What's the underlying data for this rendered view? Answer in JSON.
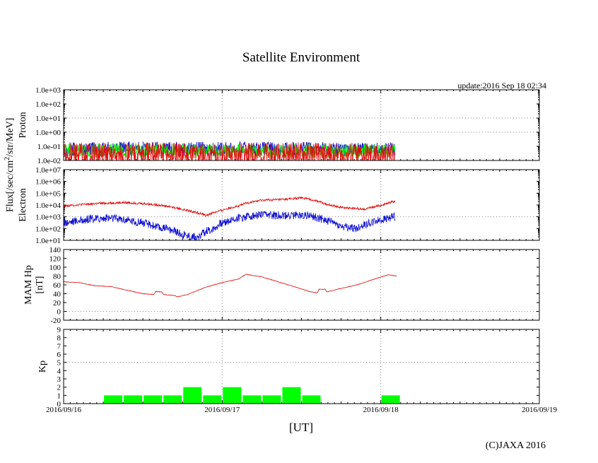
{
  "title": "Satellite Environment",
  "update_text": "update:2016 Sep 18 02:34",
  "copyright": "(C)JAXA 2016",
  "x_axis_label": "[UT]",
  "flux_label": "Flux[/sec/cm",
  "flux_label_sup": "2",
  "flux_label_tail": "/str/MeV]",
  "x_ticks": [
    "2016/09/16",
    "2016/09/17",
    "2016/09/18",
    "2016/09/19"
  ],
  "colors": {
    "red": "#e01010",
    "blue": "#1010d0",
    "green": "#00ff00",
    "grid": "#888888"
  },
  "chart_data": [
    {
      "type": "line",
      "panel": "proton",
      "ylabel": "Proton",
      "scale": "log",
      "ylim": [
        0.01,
        1000
      ],
      "y_ticks": [
        "1.0e-02",
        "1.0e-01",
        "1.0e+00",
        "1.0e+01",
        "1.0e+02",
        "1.0e+03"
      ],
      "xlim_days": [
        0,
        3
      ],
      "grid": true,
      "series": [
        {
          "color": "blue",
          "x_days": [
            0,
            0.5,
            1.0,
            1.5,
            2.09
          ],
          "values": [
            0.06,
            0.07,
            0.065,
            0.07,
            0.06
          ]
        },
        {
          "color": "green",
          "x_days": [
            0,
            0.5,
            1.0,
            1.5,
            2.09
          ],
          "values": [
            0.045,
            0.05,
            0.045,
            0.05,
            0.045
          ]
        },
        {
          "color": "red",
          "x_days": [
            0,
            0.5,
            1.0,
            1.5,
            2.09
          ],
          "values": [
            0.02,
            0.025,
            0.02,
            0.025,
            0.02
          ]
        }
      ]
    },
    {
      "type": "line",
      "panel": "electron",
      "ylabel": "Electron",
      "scale": "log",
      "ylim": [
        10,
        10000000
      ],
      "y_ticks": [
        "1.0e+01",
        "1.0e+02",
        "1.0e+03",
        "1.0e+04",
        "1.0e+05",
        "1.0e+06",
        "1.0e+07"
      ],
      "xlim_days": [
        0,
        3
      ],
      "grid": true,
      "series": [
        {
          "color": "red",
          "x_days": [
            0,
            0.2,
            0.4,
            0.6,
            0.75,
            0.9,
            1.0,
            1.1,
            1.25,
            1.4,
            1.5,
            1.65,
            1.75,
            1.9,
            2.0,
            2.09
          ],
          "values": [
            8000,
            13000,
            16000,
            10000,
            4000,
            1200,
            3500,
            8000,
            25000,
            30000,
            40000,
            12000,
            6000,
            4500,
            9000,
            20000
          ]
        },
        {
          "color": "blue",
          "x_days": [
            0,
            0.15,
            0.3,
            0.45,
            0.6,
            0.75,
            0.85,
            0.95,
            1.05,
            1.15,
            1.25,
            1.4,
            1.5,
            1.65,
            1.75,
            1.85,
            2.0,
            2.09
          ],
          "values": [
            300,
            600,
            800,
            400,
            120,
            30,
            15,
            100,
            500,
            1000,
            1500,
            1200,
            1500,
            500,
            150,
            100,
            500,
            1000
          ]
        }
      ]
    },
    {
      "type": "line",
      "panel": "magnetic",
      "ylabel": "MAM Hp",
      "ylabel2": "[nT]",
      "scale": "linear",
      "ylim": [
        -20,
        140
      ],
      "y_ticks": [
        "-20",
        "0",
        "20",
        "40",
        "60",
        "80",
        "100",
        "120",
        "140"
      ],
      "xlim_days": [
        0,
        3
      ],
      "grid": true,
      "series": [
        {
          "color": "red",
          "x_days": [
            0,
            0.1,
            0.2,
            0.3,
            0.4,
            0.5,
            0.57,
            0.58,
            0.62,
            0.63,
            0.7,
            0.72,
            0.78,
            0.9,
            1.0,
            1.1,
            1.15,
            1.25,
            1.4,
            1.55,
            1.6,
            1.61,
            1.65,
            1.66,
            1.75,
            1.85,
            1.95,
            2.05,
            2.1
          ],
          "values": [
            67,
            65,
            58,
            56,
            48,
            40,
            38,
            45,
            44,
            38,
            36,
            33,
            38,
            55,
            65,
            73,
            84,
            78,
            62,
            45,
            42,
            50,
            50,
            44,
            52,
            60,
            72,
            83,
            80
          ]
        }
      ]
    },
    {
      "type": "bar",
      "panel": "kp",
      "ylabel": "Kp",
      "ylim": [
        0,
        9
      ],
      "y_ticks": [
        "0",
        "1",
        "2",
        "3",
        "4",
        "5",
        "6",
        "7",
        "8",
        "9"
      ],
      "xlim_days": [
        0,
        3
      ],
      "reference_line": 5,
      "bar_width_days": 0.125,
      "color": "green",
      "bar_starts_days": [
        0.25,
        0.375,
        0.5,
        0.625,
        0.75,
        0.875,
        1.0,
        1.125,
        1.25,
        1.375,
        1.5,
        1.625,
        1.75,
        1.875,
        2.0
      ],
      "values": [
        1,
        1,
        1,
        1,
        2,
        1,
        2,
        1,
        1,
        2,
        1,
        0,
        0,
        0,
        1
      ]
    }
  ]
}
